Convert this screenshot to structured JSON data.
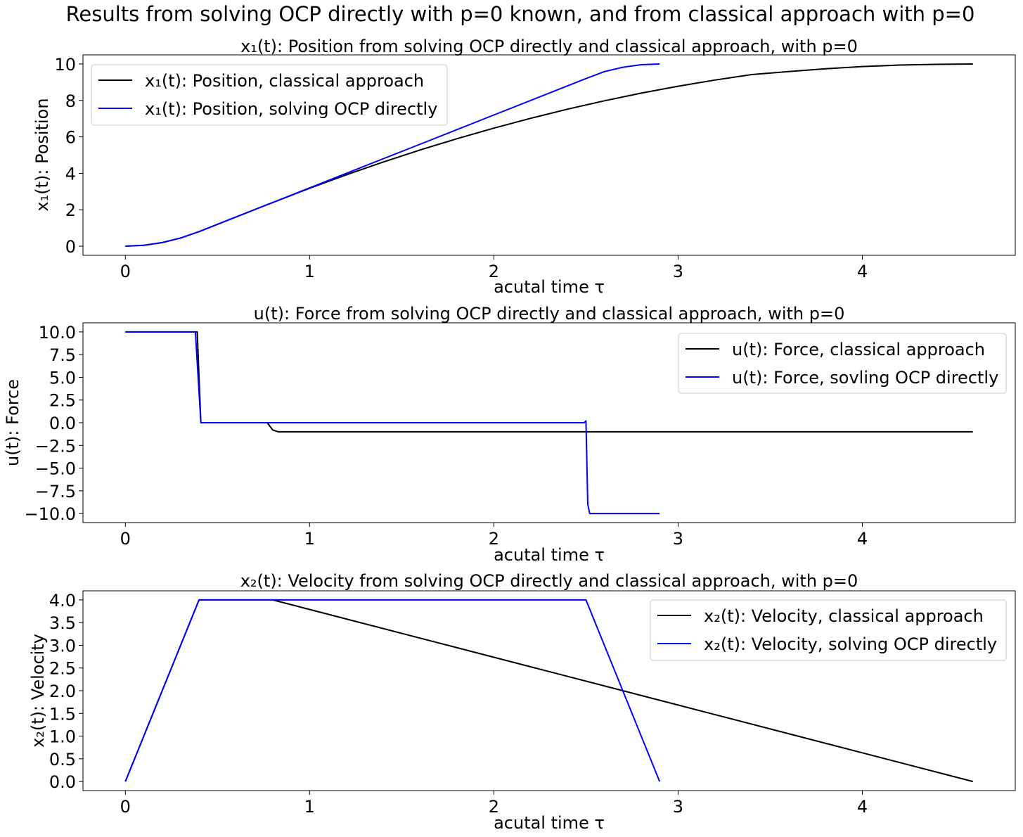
{
  "figure": {
    "suptitle": "Results from solving OCP directly with p=0 known, and from classical approach with p=0"
  },
  "colors": {
    "classical": "#000000",
    "direct": "#0000ff"
  },
  "chart_data": [
    {
      "type": "line",
      "title": "x₁(t): Position from solving OCP directly and classical approach, with p=0",
      "xlabel": "acutal time τ",
      "ylabel": "x₁(t): Position",
      "xlim": [
        -0.23,
        4.83
      ],
      "ylim": [
        -0.5,
        10.5
      ],
      "xticks": [
        0,
        1,
        2,
        3,
        4
      ],
      "xtick_labels": [
        "0",
        "1",
        "2",
        "3",
        "4"
      ],
      "yticks": [
        0,
        2,
        4,
        6,
        8,
        10
      ],
      "ytick_labels": [
        "0",
        "2",
        "4",
        "6",
        "8",
        "10"
      ],
      "grid": false,
      "legend": "top-left",
      "series": [
        {
          "name": "x₁(t): Position, classical approach",
          "color": "#000000",
          "x": [
            0,
            0.1,
            0.2,
            0.3,
            0.4,
            0.6,
            0.8,
            1.0,
            1.2,
            1.4,
            1.6,
            1.8,
            2.0,
            2.2,
            2.4,
            2.6,
            2.8,
            3.0,
            3.2,
            3.4,
            3.6,
            3.8,
            4.0,
            4.2,
            4.4,
            4.6
          ],
          "y": [
            0,
            0.05,
            0.2,
            0.45,
            0.8,
            1.6,
            2.4,
            3.18,
            3.92,
            4.62,
            5.28,
            5.9,
            6.48,
            7.02,
            7.52,
            7.98,
            8.4,
            8.78,
            9.12,
            9.42,
            9.58,
            9.74,
            9.86,
            9.94,
            9.98,
            10.0
          ]
        },
        {
          "name": "x₁(t): Position, solving OCP directly",
          "color": "#0000ff",
          "x": [
            0,
            0.1,
            0.2,
            0.3,
            0.4,
            0.8,
            1.2,
            1.6,
            2.0,
            2.5,
            2.6,
            2.7,
            2.8,
            2.9
          ],
          "y": [
            0,
            0.05,
            0.2,
            0.45,
            0.8,
            2.4,
            4.0,
            5.6,
            7.2,
            9.2,
            9.58,
            9.82,
            9.96,
            10.0
          ]
        }
      ]
    },
    {
      "type": "line",
      "title": "u(t): Force from solving OCP directly and classical approach, with p=0",
      "xlabel": "acutal time τ",
      "ylabel": "u(t): Force",
      "xlim": [
        -0.23,
        4.83
      ],
      "ylim": [
        -11.0,
        11.0
      ],
      "xticks": [
        0,
        1,
        2,
        3,
        4
      ],
      "xtick_labels": [
        "0",
        "1",
        "2",
        "3",
        "4"
      ],
      "yticks": [
        10,
        7.5,
        5,
        2.5,
        0,
        -2.5,
        -5,
        -7.5,
        -10
      ],
      "ytick_labels": [
        "10.0",
        "7.5",
        "5.0",
        "2.5",
        "0.0",
        "−2.5",
        "−5.0",
        "−7.5",
        "−10.0"
      ],
      "grid": false,
      "legend": "top-right",
      "series": [
        {
          "name": "u(t): Force, classical approach",
          "color": "#000000",
          "x": [
            0,
            0.39,
            0.41,
            0.77,
            0.8,
            0.83,
            4.6
          ],
          "y": [
            10,
            10,
            0,
            0,
            -0.8,
            -1.0,
            -1.0
          ]
        },
        {
          "name": "u(t): Force, sovling OCP directly",
          "color": "#0000ff",
          "x": [
            0,
            0.38,
            0.41,
            2.49,
            2.5,
            2.51,
            2.52,
            2.9
          ],
          "y": [
            10,
            10,
            0,
            0,
            0.2,
            -9.0,
            -10.0,
            -10.0
          ]
        }
      ]
    },
    {
      "type": "line",
      "title": "x₂(t): Velocity from solving OCP directly and classical approach, with p=0",
      "xlabel": "acutal time τ",
      "ylabel": "x₂(t): Velocity",
      "xlim": [
        -0.23,
        4.83
      ],
      "ylim": [
        -0.2,
        4.2
      ],
      "xticks": [
        0,
        1,
        2,
        3,
        4
      ],
      "xtick_labels": [
        "0",
        "1",
        "2",
        "3",
        "4"
      ],
      "yticks": [
        0,
        0.5,
        1.0,
        1.5,
        2.0,
        2.5,
        3.0,
        3.5,
        4.0
      ],
      "ytick_labels": [
        "0.0",
        "0.5",
        "1.0",
        "1.5",
        "2.0",
        "2.5",
        "3.0",
        "3.5",
        "4.0"
      ],
      "grid": false,
      "legend": "top-right",
      "series": [
        {
          "name": "x₂(t): Velocity, classical approach",
          "color": "#000000",
          "x": [
            0,
            0.4,
            0.8,
            4.6
          ],
          "y": [
            0,
            4.0,
            4.0,
            0
          ]
        },
        {
          "name": "x₂(t): Velocity, solving OCP directly",
          "color": "#0000ff",
          "x": [
            0,
            0.4,
            2.5,
            2.9
          ],
          "y": [
            0,
            4.0,
            4.0,
            0
          ]
        }
      ]
    }
  ]
}
